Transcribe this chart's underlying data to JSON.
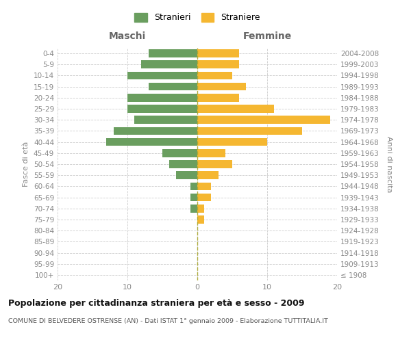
{
  "age_groups": [
    "100+",
    "95-99",
    "90-94",
    "85-89",
    "80-84",
    "75-79",
    "70-74",
    "65-69",
    "60-64",
    "55-59",
    "50-54",
    "45-49",
    "40-44",
    "35-39",
    "30-34",
    "25-29",
    "20-24",
    "15-19",
    "10-14",
    "5-9",
    "0-4"
  ],
  "birth_years": [
    "≤ 1908",
    "1909-1913",
    "1914-1918",
    "1919-1923",
    "1924-1928",
    "1929-1933",
    "1934-1938",
    "1939-1943",
    "1944-1948",
    "1949-1953",
    "1954-1958",
    "1959-1963",
    "1964-1968",
    "1969-1973",
    "1974-1978",
    "1979-1983",
    "1984-1988",
    "1989-1993",
    "1994-1998",
    "1999-2003",
    "2004-2008"
  ],
  "males": [
    0,
    0,
    0,
    0,
    0,
    0,
    1,
    1,
    1,
    3,
    4,
    5,
    13,
    12,
    9,
    10,
    10,
    7,
    10,
    8,
    7
  ],
  "females": [
    0,
    0,
    0,
    0,
    0,
    1,
    1,
    2,
    2,
    3,
    5,
    4,
    10,
    15,
    19,
    11,
    6,
    7,
    5,
    6,
    6
  ],
  "male_color": "#6a9e5f",
  "female_color": "#f5b731",
  "grid_color": "#cccccc",
  "title": "Popolazione per cittadinanza straniera per età e sesso - 2009",
  "subtitle": "COMUNE DI BELVEDERE OSTRENSE (AN) - Dati ISTAT 1° gennaio 2009 - Elaborazione TUTTITALIA.IT",
  "label_maschi": "Maschi",
  "label_femmine": "Femmine",
  "ylabel_left": "Fasce di età",
  "ylabel_right": "Anni di nascita",
  "legend_male": "Stranieri",
  "legend_female": "Straniere",
  "xlim": 20,
  "bar_height": 0.72
}
